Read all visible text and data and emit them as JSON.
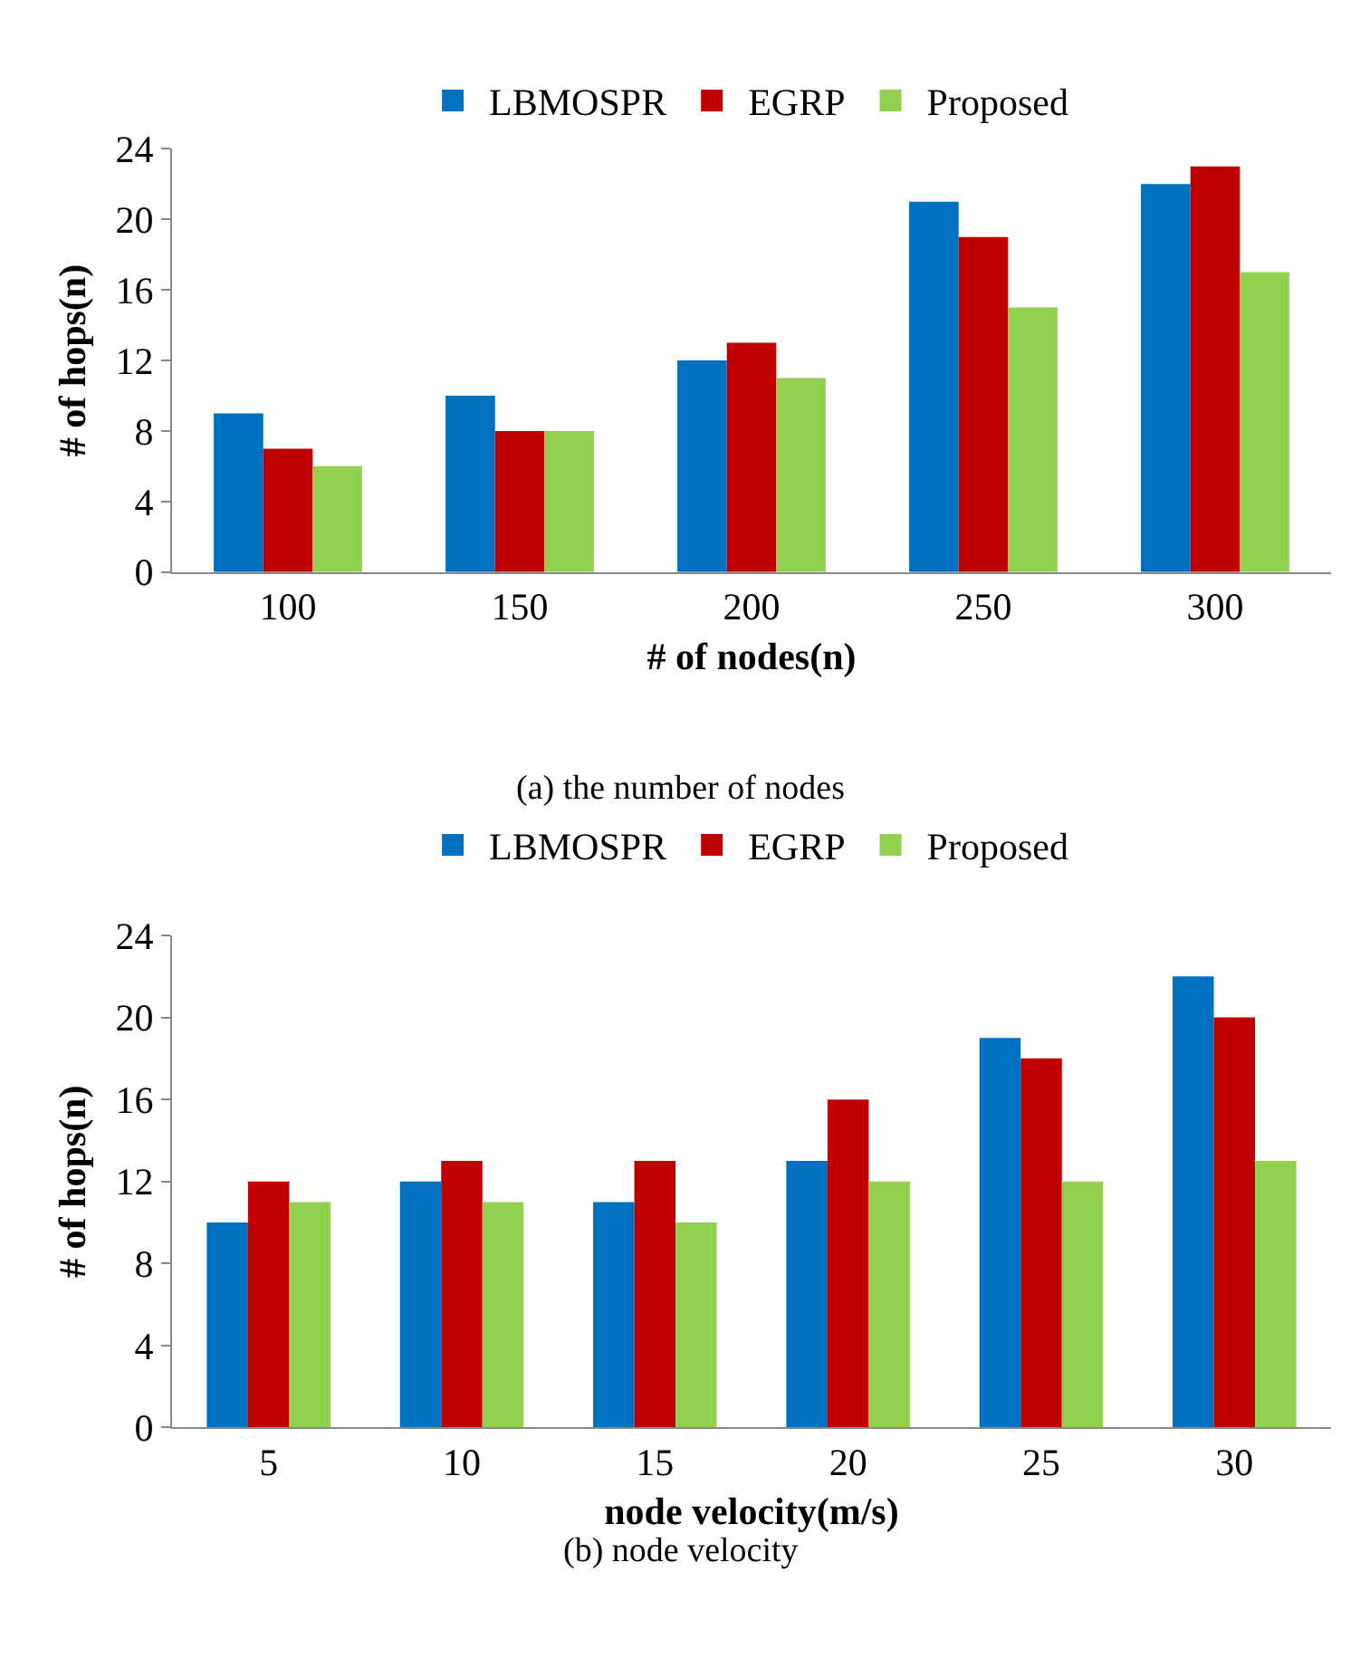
{
  "chart_data": [
    {
      "type": "bar",
      "categories": [
        "100",
        "150",
        "200",
        "250",
        "300"
      ],
      "xlabel": "# of nodes(n)",
      "ylabel": "# of hops(n)",
      "ylim": [
        0,
        24
      ],
      "yticks": [
        0,
        4,
        8,
        12,
        16,
        20,
        24
      ],
      "legend": "top",
      "grid": false,
      "annotations": [
        "(a) the number of nodes"
      ],
      "series": [
        {
          "name": "LBMOSPR",
          "color": "#0070c0",
          "values": [
            9,
            10,
            12,
            21,
            22
          ]
        },
        {
          "name": "EGRP",
          "color": "#c00000",
          "values": [
            7,
            8,
            13,
            19,
            23
          ]
        },
        {
          "name": "Proposed",
          "color": "#92d050",
          "values": [
            6,
            8,
            11,
            15,
            17
          ]
        }
      ]
    },
    {
      "type": "bar",
      "categories": [
        "5",
        "10",
        "15",
        "20",
        "25",
        "30"
      ],
      "xlabel": "node velocity(m/s)",
      "ylabel": "# of hops(n)",
      "ylim": [
        0,
        24
      ],
      "yticks": [
        0,
        4,
        8,
        12,
        16,
        20,
        24
      ],
      "legend": "top",
      "grid": false,
      "annotations": [
        "(b) node velocity"
      ],
      "series": [
        {
          "name": "LBMOSPR",
          "color": "#0070c0",
          "values": [
            10,
            12,
            11,
            13,
            19,
            22
          ]
        },
        {
          "name": "EGRP",
          "color": "#c00000",
          "values": [
            12,
            13,
            13,
            16,
            18,
            20
          ]
        },
        {
          "name": "Proposed",
          "color": "#92d050",
          "values": [
            11,
            11,
            10,
            12,
            12,
            13
          ]
        }
      ]
    }
  ]
}
